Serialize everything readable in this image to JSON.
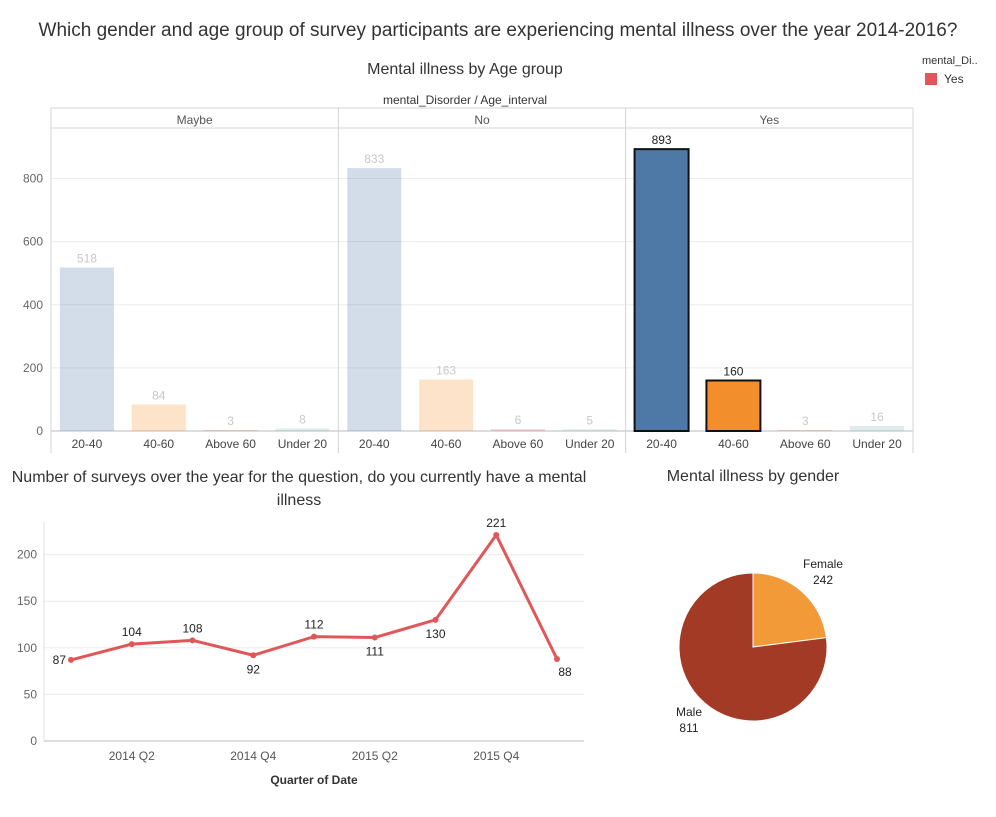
{
  "page": {
    "title": "Which gender and age group of survey participants are experiencing mental illness over the year 2014-2016?"
  },
  "legend": {
    "title": "mental_Di..",
    "items": [
      {
        "label": "Yes",
        "color": "#E15759"
      }
    ]
  },
  "colors": {
    "age_20_40": "#4E79A7",
    "age_40_60": "#F28E2B",
    "age_above_60": "#E15759",
    "age_under_20": "#76B7B2",
    "line": "#E15759",
    "pie_male": "#A23A25",
    "pie_female": "#F29A38",
    "grid": "#ececec",
    "faded_label": "#c8c8c8"
  },
  "chart_data": [
    {
      "type": "bar",
      "title": "Mental illness by Age group",
      "subtitle": "mental_Disorder / Age_interval",
      "panels": [
        "Maybe",
        "No",
        "Yes"
      ],
      "categories": [
        "20-40",
        "40-60",
        "Above 60",
        "Under 20"
      ],
      "series": [
        {
          "panel": "Maybe",
          "values": [
            518,
            84,
            3,
            8
          ]
        },
        {
          "panel": "No",
          "values": [
            833,
            163,
            6,
            5
          ]
        },
        {
          "panel": "Yes",
          "values": [
            893,
            160,
            3,
            16
          ]
        }
      ],
      "highlighted": {
        "panel": "Yes",
        "categories": [
          "20-40",
          "40-60"
        ]
      },
      "yticks": [
        0,
        200,
        400,
        600,
        800
      ],
      "ylim": [
        0,
        960
      ],
      "grid": true
    },
    {
      "type": "line",
      "title": "Number of surveys over the year for the question, do you currently have a mental illness",
      "xlabel": "Quarter of Date",
      "xticklabels": [
        "2014 Q2",
        "2014 Q4",
        "2015 Q2",
        "2015 Q4"
      ],
      "x": [
        "2014 Q1",
        "2014 Q2",
        "2014 Q3",
        "2014 Q4",
        "2015 Q1",
        "2015 Q2",
        "2015 Q3",
        "2015 Q4",
        "2016 Q1"
      ],
      "values": [
        87,
        104,
        108,
        92,
        112,
        111,
        130,
        221,
        88
      ],
      "yticks": [
        0,
        50,
        100,
        150,
        200
      ],
      "ylim": [
        0,
        235
      ],
      "grid": true
    },
    {
      "type": "pie",
      "title": "Mental illness by gender",
      "slices": [
        {
          "label": "Female",
          "value": 242
        },
        {
          "label": "Male",
          "value": 811
        }
      ]
    }
  ]
}
